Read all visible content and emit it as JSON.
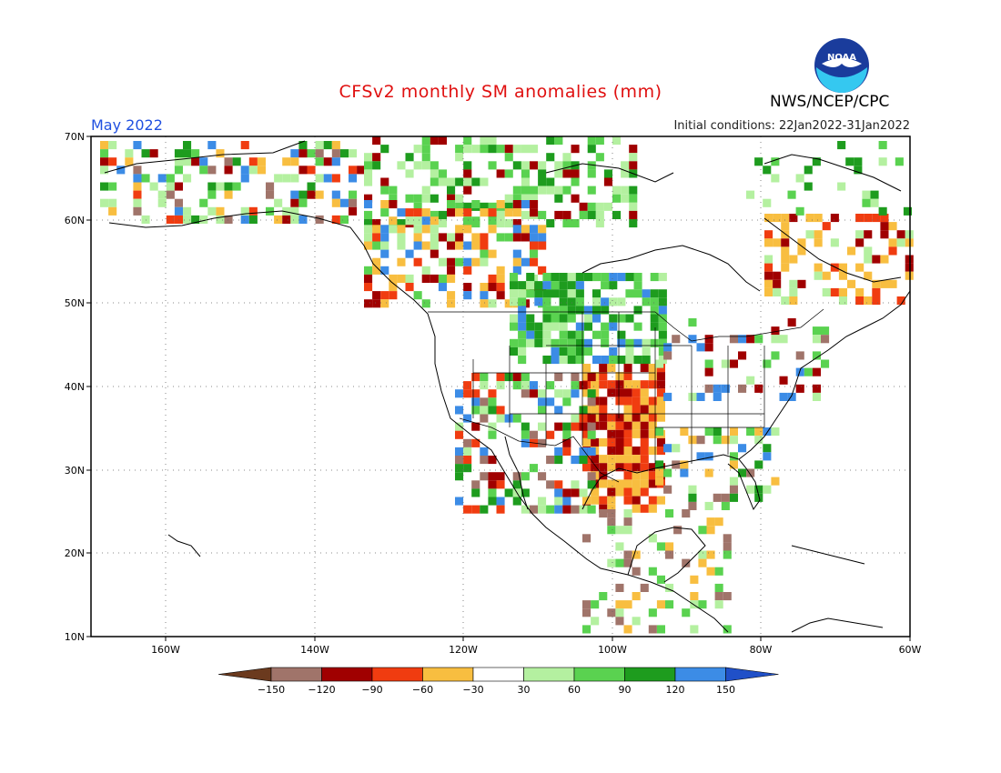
{
  "header": {
    "title": "CFSv2 monthly SM anomalies (mm)",
    "period": "May 2022",
    "agency": "NWS/NCEP/CPC",
    "initial_conditions": "Initial conditions: 22Jan2022-31Jan2022",
    "logo_text": "NOAA"
  },
  "map": {
    "lat_labels": [
      "70N",
      "60N",
      "50N",
      "40N",
      "30N",
      "20N",
      "10N"
    ],
    "lon_labels": [
      "160W",
      "140W",
      "120W",
      "100W",
      "80W",
      "60W"
    ],
    "region": "North America"
  },
  "colorbar": {
    "labels": [
      "-150",
      "-120",
      "-90",
      "-60",
      "-30",
      "30",
      "60",
      "90",
      "120",
      "150"
    ],
    "colors": [
      "#6b3a1e",
      "#a0746a",
      "#a00000",
      "#f03c10",
      "#f8be40",
      "#ffffff",
      "#b4f0a0",
      "#5ad250",
      "#1e9c1e",
      "#3c8ce6",
      "#2050c8"
    ]
  }
}
